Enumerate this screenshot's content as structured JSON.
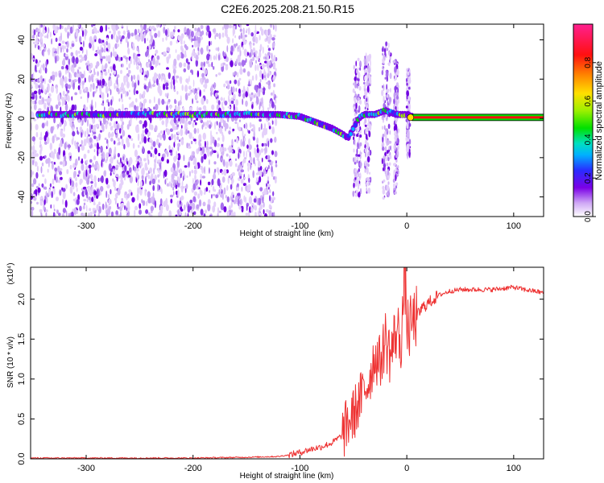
{
  "title": "C2E6.2025.208.21.50.R15",
  "chart_data": [
    {
      "type": "heatmap",
      "xlabel": "Height of straight line (km)",
      "ylabel": "Frequency (Hz)",
      "xlim": [
        -352,
        128
      ],
      "ylim": [
        -50,
        48
      ],
      "x_ticks": [
        -300,
        -200,
        -100,
        0,
        100
      ],
      "y_ticks": [
        -40,
        -20,
        0,
        20,
        40
      ],
      "colorbar": {
        "label": "Normalized spectral amplitude",
        "range": [
          0,
          1
        ],
        "ticks": [
          0.0,
          0.2,
          0.4,
          0.6,
          0.8
        ],
        "tick_labels": [
          "0.0",
          "0.2",
          "0.4",
          "0.6",
          "0.8"
        ]
      },
      "ridge": {
        "x": [
          -350,
          -300,
          -250,
          -200,
          -150,
          -120,
          -100,
          -90,
          -80,
          -70,
          -60,
          -55,
          -50,
          -45,
          -40,
          -30,
          -20,
          -10,
          0,
          5,
          128
        ],
        "y": [
          2,
          2,
          2,
          2,
          2,
          2,
          1,
          -1,
          -3,
          -5,
          -8,
          -10,
          -5,
          0,
          2,
          2,
          4,
          2,
          2,
          1,
          0
        ]
      }
    },
    {
      "type": "line",
      "xlabel": "Height of straight line (km)",
      "ylabel": "SNR (10 * v/v)",
      "scale_label": "(x10⁴)",
      "xlim": [
        -352,
        128
      ],
      "ylim": [
        0,
        2.4
      ],
      "x_ticks": [
        -300,
        -200,
        -100,
        0,
        100
      ],
      "y_ticks": [
        0.0,
        0.5,
        1.0,
        1.5,
        2.0
      ],
      "y_tick_labels": [
        "0.0",
        "0.5",
        "1.0",
        "1.5",
        "2.0"
      ],
      "color": "#ee3333",
      "series": [
        {
          "x": [
            -350,
            -300,
            -250,
            -200,
            -150,
            -120,
            -110,
            -100,
            -90,
            -80,
            -70,
            -60,
            -55,
            -50,
            -45,
            -40,
            -35,
            -30,
            -25,
            -20,
            -15,
            -10,
            -5,
            -2,
            0,
            2,
            5,
            10,
            15,
            20,
            25,
            30,
            40,
            50,
            60,
            80,
            100,
            110,
            120,
            128
          ],
          "y": [
            0.01,
            0.01,
            0.01,
            0.01,
            0.02,
            0.03,
            0.05,
            0.08,
            0.12,
            0.15,
            0.2,
            0.3,
            0.45,
            0.55,
            0.7,
            0.85,
            1.0,
            1.3,
            1.2,
            1.5,
            1.3,
            1.6,
            1.5,
            2.35,
            1.7,
            1.6,
            1.7,
            1.8,
            1.9,
            1.95,
            2.0,
            2.05,
            2.1,
            2.12,
            2.12,
            2.12,
            2.15,
            2.12,
            2.1,
            2.08
          ]
        }
      ]
    }
  ]
}
